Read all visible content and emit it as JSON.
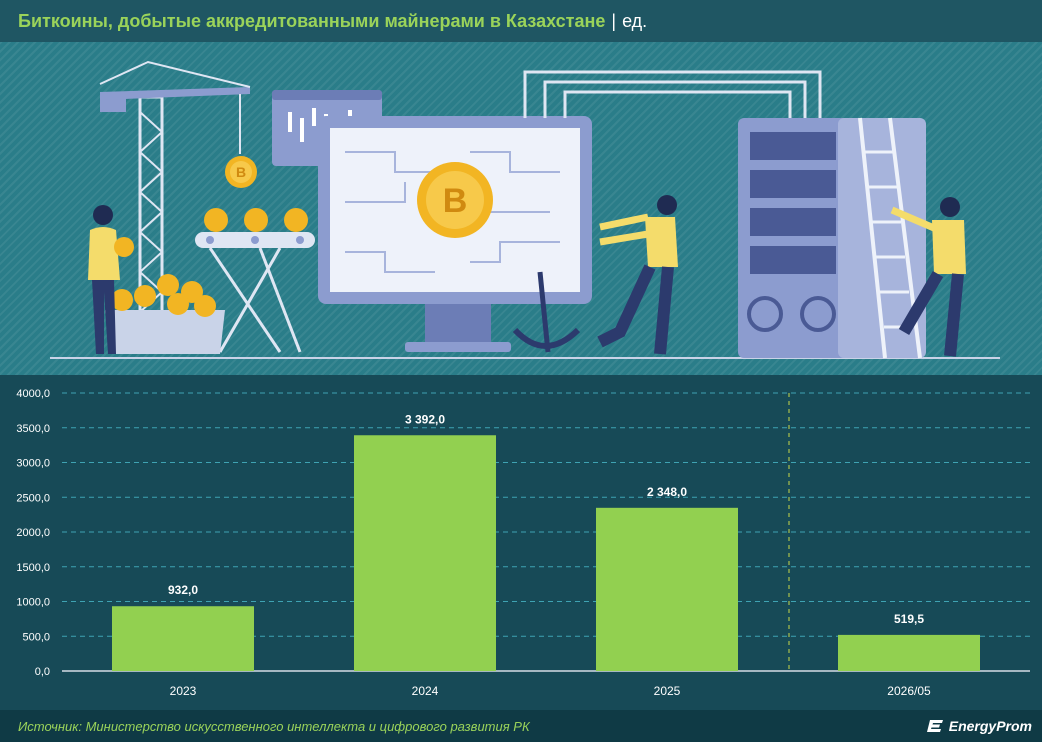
{
  "header": {
    "title": "Биткоины, добытые аккредитованными майнерами в Казахстане",
    "separator": "|",
    "unit": "ед."
  },
  "footer": {
    "source": "Источник: Министерство искусственного интеллекта и цифрового развития РК",
    "logo_text": "EnergyProm"
  },
  "colors": {
    "bar": "#92d050",
    "background": "#174a57",
    "title_accent": "#9ad35a",
    "gridline": "#3fa3b3"
  },
  "chart_data": {
    "type": "bar",
    "categories": [
      "2023",
      "2024",
      "2025",
      "2026/05"
    ],
    "values": [
      932.0,
      3392.0,
      2348.0,
      519.5
    ],
    "data_labels": [
      "932,0",
      "3 392,0",
      "2 348,0",
      "519,5"
    ],
    "y_ticks": [
      "0,0",
      "500,0",
      "1000,0",
      "1500,0",
      "2000,0",
      "2500,0",
      "3000,0",
      "3500,0",
      "4000,0"
    ],
    "ylim": [
      0,
      4000
    ],
    "grid": true,
    "divider_before_category": "2026/05"
  }
}
